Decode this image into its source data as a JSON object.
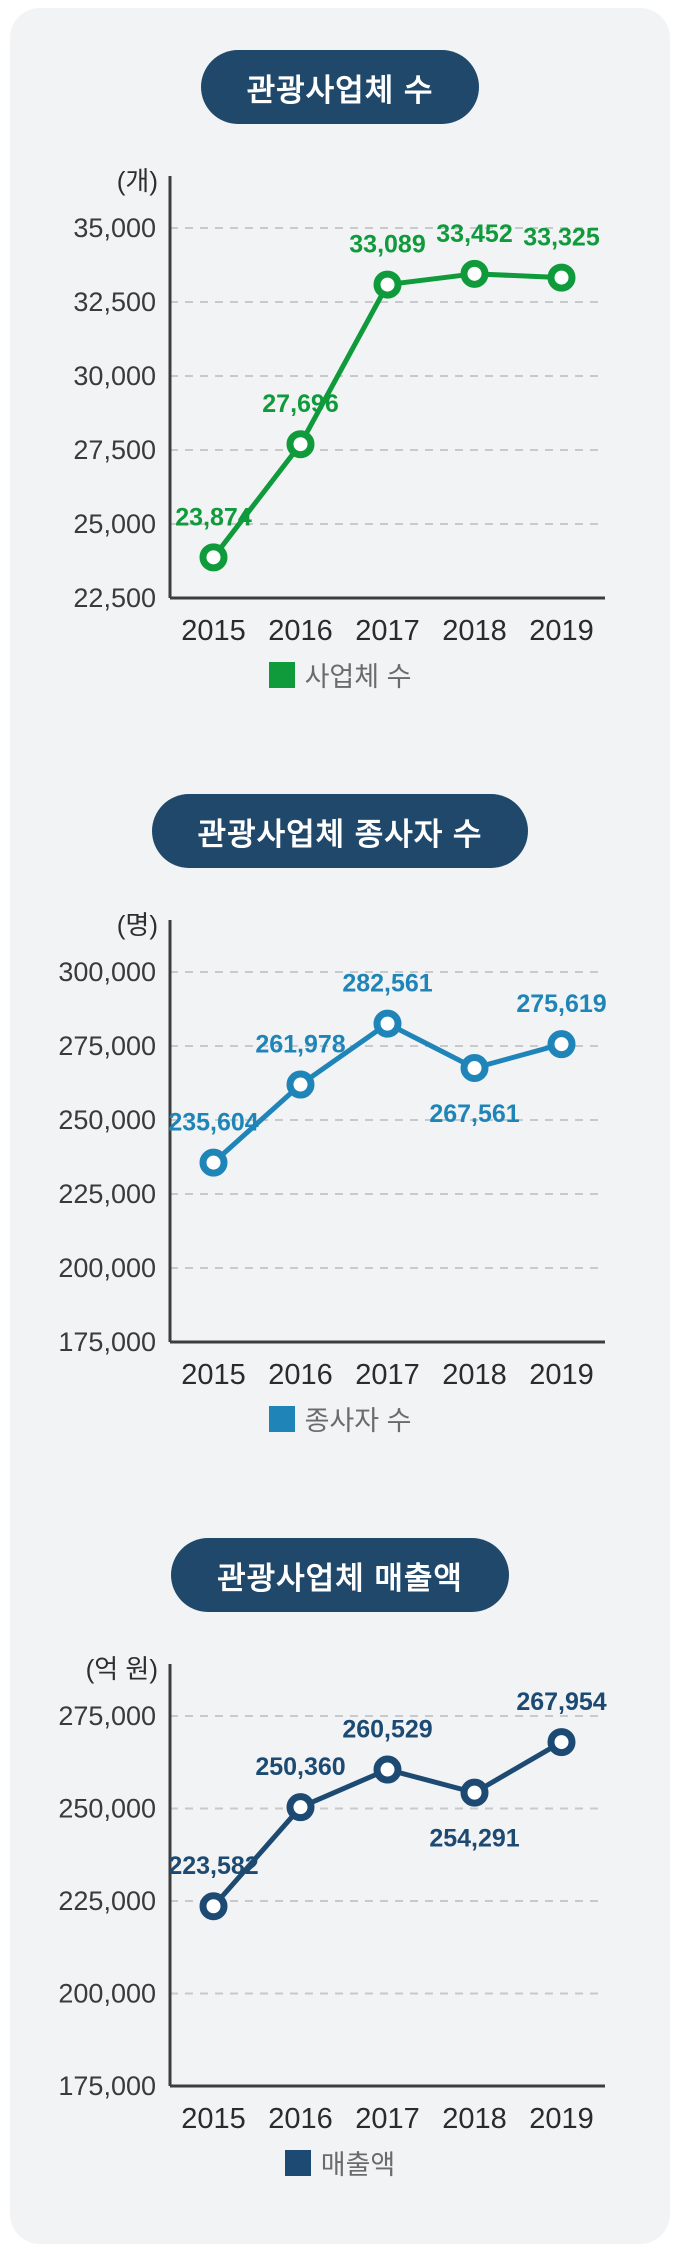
{
  "styles": {
    "card_background": "#f2f3f4",
    "badge_background": "#20486b",
    "axis_color": "#3d3d3d",
    "grid_color": "#c7c9cb",
    "tick_label_color": "#3a3a3a",
    "year_label_color": "#2b2b2b",
    "unit_label_color": "#2e2e2e",
    "legend_text_color": "#6b6b6b"
  },
  "chart_data": [
    {
      "type": "line",
      "title": "관광사업체 수",
      "unit": "(개)",
      "legend": "사업체 수",
      "color": "#0f9a3c",
      "categories": [
        "2015",
        "2016",
        "2017",
        "2018",
        "2019"
      ],
      "values": [
        23874,
        27696,
        33089,
        33452,
        33325
      ],
      "value_labels": [
        "23,874",
        "27,696",
        "33,089",
        "33,452",
        "33,325"
      ],
      "label_side": [
        "above",
        "above",
        "above",
        "above",
        "above"
      ],
      "ylim": [
        22500,
        35000
      ],
      "y_ticks": [
        {
          "value": 35000,
          "label": "35,000"
        },
        {
          "value": 32500,
          "label": "32,500"
        },
        {
          "value": 30000,
          "label": "30,000"
        },
        {
          "value": 27500,
          "label": "27,500"
        },
        {
          "value": 25000,
          "label": "25,000"
        },
        {
          "value": 22500,
          "label": "22,500"
        }
      ],
      "grid": "dashed",
      "legend_position": "bottom"
    },
    {
      "type": "line",
      "title": "관광사업체 종사자 수",
      "unit": "(명)",
      "legend": "종사자 수",
      "color": "#1f85b8",
      "categories": [
        "2015",
        "2016",
        "2017",
        "2018",
        "2019"
      ],
      "values": [
        235604,
        261978,
        282561,
        267561,
        275619
      ],
      "value_labels": [
        "235,604",
        "261,978",
        "282,561",
        "267,561",
        "275,619"
      ],
      "label_side": [
        "above",
        "above",
        "above",
        "below",
        "above"
      ],
      "ylim": [
        175000,
        300000
      ],
      "y_ticks": [
        {
          "value": 300000,
          "label": "300,000"
        },
        {
          "value": 275000,
          "label": "275,000"
        },
        {
          "value": 250000,
          "label": "250,000"
        },
        {
          "value": 225000,
          "label": "225,000"
        },
        {
          "value": 200000,
          "label": "200,000"
        },
        {
          "value": 175000,
          "label": "175,000"
        }
      ],
      "grid": "dashed",
      "legend_position": "bottom"
    },
    {
      "type": "line",
      "title": "관광사업체 매출액",
      "unit": "(억 원)",
      "legend": "매출액",
      "color": "#1d4a72",
      "categories": [
        "2015",
        "2016",
        "2017",
        "2018",
        "2019"
      ],
      "values": [
        223582,
        250360,
        260529,
        254291,
        267954
      ],
      "value_labels": [
        "223,582",
        "250,360",
        "260,529",
        "254,291",
        "267,954"
      ],
      "label_side": [
        "above",
        "above",
        "above",
        "below",
        "above"
      ],
      "ylim": [
        175000,
        275000
      ],
      "y_ticks": [
        {
          "value": 275000,
          "label": "275,000"
        },
        {
          "value": 250000,
          "label": "250,000"
        },
        {
          "value": 225000,
          "label": "225,000"
        },
        {
          "value": 200000,
          "label": "200,000"
        },
        {
          "value": 175000,
          "label": "175,000"
        }
      ],
      "grid": "dashed",
      "legend_position": "bottom"
    }
  ]
}
